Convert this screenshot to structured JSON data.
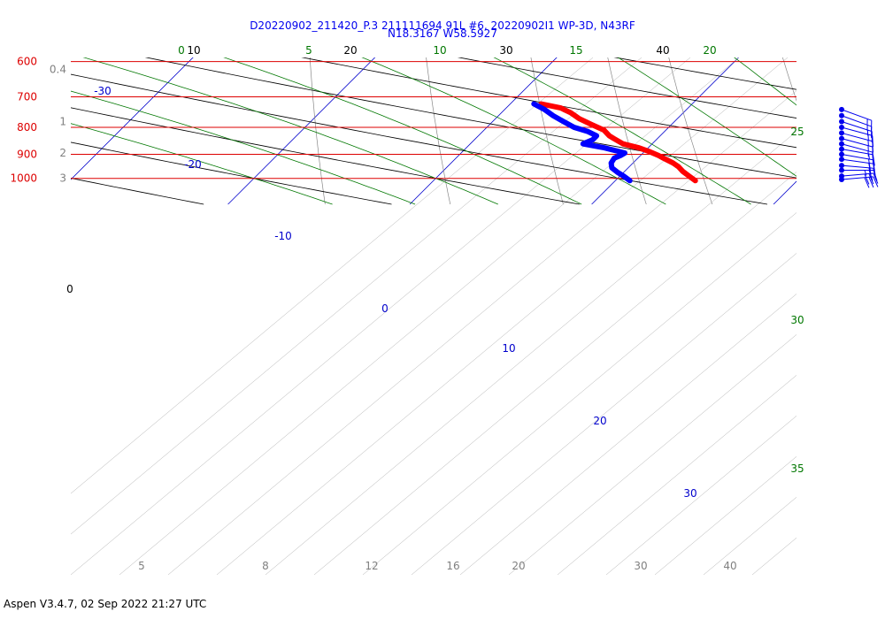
{
  "header": {
    "title_line1": "D20220902_211420_P.3 211111694 91L #6, 20220902I1 WP-3D, N43RF",
    "title_line2": "N18.3167 W58.5927"
  },
  "footer": {
    "text": "Aspen V3.4.7, 02 Sep 2022  21:27 UTC"
  },
  "colors": {
    "isobar": "#dd0000",
    "isotherm": "#0000cc",
    "dry_adiabat": "#000000",
    "moist_adiabat": "#007700",
    "mixing_ratio": "#888888",
    "temperature": "#ff0000",
    "dewpoint": "#0000ff"
  },
  "chart_data": {
    "type": "skew-t",
    "pressure_levels": [
      {
        "p": 600,
        "label": "600"
      },
      {
        "p": 700,
        "label": "700"
      },
      {
        "p": 800,
        "label": "800"
      },
      {
        "p": 900,
        "label": "900"
      },
      {
        "p": 1000,
        "label": "1000"
      }
    ],
    "height_ticks": [
      {
        "label": "0.4",
        "p": 621
      },
      {
        "label": "1",
        "p": 780
      },
      {
        "label": "2",
        "p": 895
      },
      {
        "label": "3",
        "p": 1000
      }
    ],
    "isotherms": [
      {
        "t": -30,
        "label": "-30"
      },
      {
        "t": -20,
        "label": "-20"
      },
      {
        "t": -10,
        "label": "-10"
      },
      {
        "t": 0,
        "label": "0"
      },
      {
        "t": 10,
        "label": "10"
      },
      {
        "t": 20,
        "label": "20"
      },
      {
        "t": 30,
        "label": "30"
      }
    ],
    "dry_adiabats_theta_c": [
      {
        "t": 0,
        "label": "0"
      },
      {
        "t": 10,
        "label": "10"
      },
      {
        "t": 20,
        "label": "20"
      },
      {
        "t": 30,
        "label": "30"
      },
      {
        "t": 40,
        "label": "40"
      }
    ],
    "moist_adiabats_c": [
      {
        "t": 0,
        "label": "0"
      },
      {
        "t": 5,
        "label": "5"
      },
      {
        "t": 10,
        "label": "10"
      },
      {
        "t": 15,
        "label": "15"
      },
      {
        "t": 20,
        "label": "20"
      },
      {
        "t": 25,
        "label": "25"
      },
      {
        "t": 30,
        "label": "30"
      },
      {
        "t": 35,
        "label": "35"
      }
    ],
    "mixing_ratio_labels": [
      "5",
      "8",
      "12",
      "16",
      "20",
      "30",
      "40"
    ],
    "mixing_ratio_values": [
      5,
      8,
      12,
      16,
      20,
      30,
      40
    ],
    "temperature_profile": [
      [
        722,
        11.7
      ],
      [
        735,
        13.0
      ],
      [
        750,
        13.8
      ],
      [
        770,
        14.6
      ],
      [
        790,
        15.6
      ],
      [
        810,
        16.6
      ],
      [
        830,
        17.2
      ],
      [
        840,
        17.6
      ],
      [
        850,
        18.0
      ],
      [
        860,
        18.4
      ],
      [
        875,
        19.5
      ],
      [
        890,
        20.3
      ],
      [
        905,
        21.0
      ],
      [
        915,
        21.4
      ],
      [
        935,
        22.2
      ],
      [
        950,
        22.7
      ],
      [
        970,
        23.2
      ],
      [
        990,
        23.8
      ],
      [
        1010,
        24.4
      ]
    ],
    "dewpoint_profile": [
      [
        722,
        11.3
      ],
      [
        740,
        12.2
      ],
      [
        760,
        13.0
      ],
      [
        780,
        13.9
      ],
      [
        800,
        14.8
      ],
      [
        815,
        15.8
      ],
      [
        830,
        16.5
      ],
      [
        845,
        16.5
      ],
      [
        860,
        16.2
      ],
      [
        875,
        17.6
      ],
      [
        895,
        19.0
      ],
      [
        905,
        18.9
      ],
      [
        915,
        18.7
      ],
      [
        935,
        18.8
      ],
      [
        955,
        19.1
      ],
      [
        975,
        19.7
      ],
      [
        990,
        20.2
      ],
      [
        1010,
        20.8
      ]
    ],
    "wind_barbs": [
      {
        "p": 740,
        "dir": 110,
        "speed": 15
      },
      {
        "p": 760,
        "dir": 110,
        "speed": 15
      },
      {
        "p": 780,
        "dir": 108,
        "speed": 15
      },
      {
        "p": 800,
        "dir": 105,
        "speed": 15
      },
      {
        "p": 820,
        "dir": 105,
        "speed": 15
      },
      {
        "p": 840,
        "dir": 105,
        "speed": 15
      },
      {
        "p": 860,
        "dir": 105,
        "speed": 15
      },
      {
        "p": 880,
        "dir": 100,
        "speed": 15
      },
      {
        "p": 900,
        "dir": 100,
        "speed": 20
      },
      {
        "p": 920,
        "dir": 98,
        "speed": 20
      },
      {
        "p": 945,
        "dir": 95,
        "speed": 20
      },
      {
        "p": 965,
        "dir": 90,
        "speed": 25
      },
      {
        "p": 990,
        "dir": 85,
        "speed": 30
      },
      {
        "p": 1005,
        "dir": 85,
        "speed": 30
      }
    ]
  }
}
